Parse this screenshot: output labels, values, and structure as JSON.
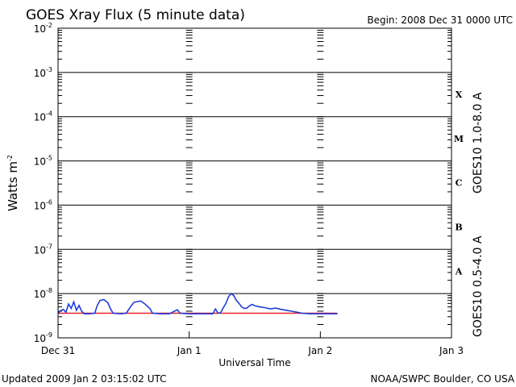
{
  "header": {
    "title": "GOES Xray Flux (5 minute data)",
    "begin": "Begin:  2008 Dec 31 0000 UTC"
  },
  "footer": {
    "updated": "Updated 2009 Jan  2 03:15:02 UTC",
    "credit": "NOAA/SWPC Boulder, CO USA"
  },
  "colors": {
    "long_channel": "#e8262b",
    "short_channel": "#1f3ddc",
    "axis": "#000000"
  },
  "chart_data": {
    "type": "line",
    "title": "GOES Xray Flux (5 minute data)",
    "xlabel": "Universal Time",
    "ylabel": "Watts m",
    "ylabel_sup": "-2",
    "y_scale": "log",
    "ylim": [
      1e-09,
      0.01
    ],
    "y_ticks": [
      {
        "base": "10",
        "exp": "-9"
      },
      {
        "base": "10",
        "exp": "-8"
      },
      {
        "base": "10",
        "exp": "-7"
      },
      {
        "base": "10",
        "exp": "-6"
      },
      {
        "base": "10",
        "exp": "-5"
      },
      {
        "base": "10",
        "exp": "-4"
      },
      {
        "base": "10",
        "exp": "-3"
      },
      {
        "base": "10",
        "exp": "-2"
      }
    ],
    "x_unit": "days since 2008 Dec 31 0000 UTC",
    "xlim": [
      0,
      3
    ],
    "x_ticks": [
      {
        "v": 0,
        "label": "Dec 31"
      },
      {
        "v": 1,
        "label": "Jan 1"
      },
      {
        "v": 2,
        "label": "Jan 2"
      },
      {
        "v": 3,
        "label": "Jan 3"
      }
    ],
    "flare_classes": [
      {
        "label": "X",
        "flux": 0.00032
      },
      {
        "label": "M",
        "flux": 3.2e-05
      },
      {
        "label": "C",
        "flux": 3.2e-06
      },
      {
        "label": "B",
        "flux": 3.2e-07
      },
      {
        "label": "A",
        "flux": 3.2e-08
      }
    ],
    "grid": true,
    "series": [
      {
        "name": "GOES10 1.0-8.0 A",
        "color": "#e8262b",
        "points": [
          [
            0.0,
            3.6e-09
          ],
          [
            0.5,
            3.6e-09
          ],
          [
            0.8,
            3.6e-09
          ],
          [
            1.1,
            3.6e-09
          ],
          [
            1.5,
            3.6e-09
          ],
          [
            1.8,
            3.6e-09
          ],
          [
            2.13,
            3.6e-09
          ]
        ]
      },
      {
        "name": "GOES10 0.5-4.0 A",
        "color": "#1f3ddc",
        "points": [
          [
            0.0,
            3.6e-09
          ],
          [
            0.02,
            4.1e-09
          ],
          [
            0.04,
            4.4e-09
          ],
          [
            0.06,
            3.8e-09
          ],
          [
            0.08,
            5.8e-09
          ],
          [
            0.1,
            4.6e-09
          ],
          [
            0.12,
            6.5e-09
          ],
          [
            0.14,
            4.2e-09
          ],
          [
            0.16,
            5.4e-09
          ],
          [
            0.18,
            4e-09
          ],
          [
            0.2,
            3.5e-09
          ],
          [
            0.24,
            3.5e-09
          ],
          [
            0.28,
            3.6e-09
          ],
          [
            0.3,
            5.5e-09
          ],
          [
            0.32,
            7e-09
          ],
          [
            0.35,
            7.3e-09
          ],
          [
            0.38,
            6.2e-09
          ],
          [
            0.4,
            4.5e-09
          ],
          [
            0.42,
            3.6e-09
          ],
          [
            0.48,
            3.5e-09
          ],
          [
            0.52,
            3.6e-09
          ],
          [
            0.56,
            5.4e-09
          ],
          [
            0.58,
            6.4e-09
          ],
          [
            0.63,
            6.8e-09
          ],
          [
            0.66,
            5.9e-09
          ],
          [
            0.7,
            4.6e-09
          ],
          [
            0.72,
            3.6e-09
          ],
          [
            0.78,
            3.5e-09
          ],
          [
            0.85,
            3.5e-09
          ],
          [
            0.88,
            3.9e-09
          ],
          [
            0.91,
            4.3e-09
          ],
          [
            0.93,
            3.6e-09
          ],
          [
            1.0,
            3.5e-09
          ],
          [
            1.1,
            3.5e-09
          ],
          [
            1.18,
            3.5e-09
          ],
          [
            1.2,
            4.5e-09
          ],
          [
            1.22,
            3.6e-09
          ],
          [
            1.24,
            3.7e-09
          ],
          [
            1.26,
            4.8e-09
          ],
          [
            1.28,
            6e-09
          ],
          [
            1.3,
            8.5e-09
          ],
          [
            1.32,
            1e-08
          ],
          [
            1.34,
            9e-09
          ],
          [
            1.36,
            7e-09
          ],
          [
            1.38,
            6e-09
          ],
          [
            1.4,
            5e-09
          ],
          [
            1.42,
            4.6e-09
          ],
          [
            1.44,
            4.7e-09
          ],
          [
            1.46,
            5.3e-09
          ],
          [
            1.48,
            5.7e-09
          ],
          [
            1.5,
            5.3e-09
          ],
          [
            1.54,
            5e-09
          ],
          [
            1.58,
            4.8e-09
          ],
          [
            1.62,
            4.5e-09
          ],
          [
            1.66,
            4.7e-09
          ],
          [
            1.7,
            4.4e-09
          ],
          [
            1.74,
            4.2e-09
          ],
          [
            1.78,
            4e-09
          ],
          [
            1.82,
            3.8e-09
          ],
          [
            1.86,
            3.6e-09
          ],
          [
            1.92,
            3.5e-09
          ],
          [
            2.0,
            3.5e-09
          ],
          [
            2.13,
            3.5e-09
          ]
        ]
      }
    ]
  }
}
